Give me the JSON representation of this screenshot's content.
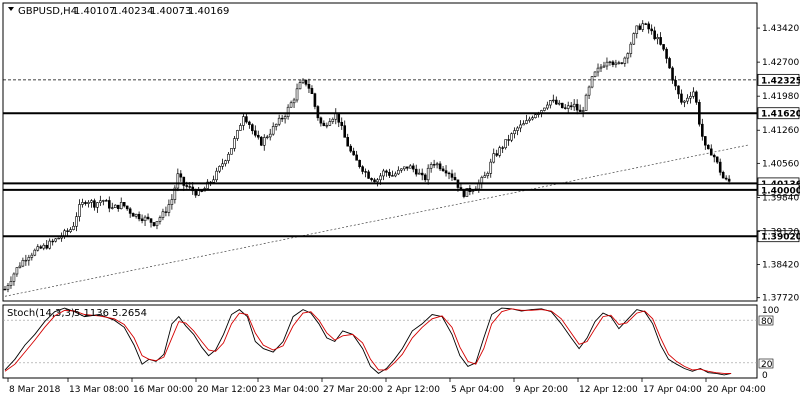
{
  "header": {
    "symbol": "GBPUSD,H4",
    "open": "1.40107",
    "high": "1.40234",
    "low": "1.40073",
    "close": "1.40169"
  },
  "stoch": {
    "label": "Stoch(14,3,3)",
    "k_value": "5.1136",
    "d_value": "5.2654",
    "level_high": "80",
    "level_low": "20",
    "tick_top": "100",
    "tick_bottom": "0",
    "k_color": "#000000",
    "d_color": "#d40000"
  },
  "chart_data": {
    "type": "candlestick",
    "price_axis_ticks": [
      "1.43420",
      "1.42700",
      "1.41980",
      "1.41260",
      "1.40560",
      "1.39840",
      "1.39120",
      "1.38420",
      "1.37720"
    ],
    "time_axis_ticks": [
      "8 Mar 2018",
      "13 Mar 08:00",
      "16 Mar 00:00",
      "20 Mar 12:00",
      "23 Mar 04:00",
      "27 Mar 20:00",
      "2 Apr 12:00",
      "5 Apr 04:00",
      "9 Apr 20:00",
      "12 Apr 12:00",
      "17 Apr 04:00",
      "20 Apr 04:00"
    ],
    "ylim": [
      1.3765,
      1.4395
    ],
    "levels": [
      {
        "price": 1.42325,
        "label": "1.42325",
        "style": "dashed"
      },
      {
        "price": 1.4162,
        "label": "1.41620",
        "style": "solid"
      },
      {
        "price": 1.40136,
        "label": "1.40136",
        "style": "solid"
      },
      {
        "price": 1.4,
        "label": "1.40000",
        "style": "solid"
      },
      {
        "price": 1.3902,
        "label": "1.39020",
        "style": "solid"
      }
    ],
    "trendline": [
      [
        0,
        1.3775
      ],
      [
        749,
        1.4095
      ]
    ],
    "close_path": [
      [
        0,
        1.379
      ],
      [
        8,
        1.382
      ],
      [
        14,
        1.384
      ],
      [
        22,
        1.386
      ],
      [
        30,
        1.387
      ],
      [
        40,
        1.388
      ],
      [
        48,
        1.389
      ],
      [
        55,
        1.39
      ],
      [
        62,
        1.391
      ],
      [
        68,
        1.392
      ],
      [
        74,
        1.396
      ],
      [
        82,
        1.398
      ],
      [
        90,
        1.397
      ],
      [
        98,
        1.398
      ],
      [
        108,
        1.396
      ],
      [
        118,
        1.397
      ],
      [
        128,
        1.395
      ],
      [
        140,
        1.394
      ],
      [
        150,
        1.393
      ],
      [
        160,
        1.395
      ],
      [
        168,
        1.398
      ],
      [
        174,
        1.403
      ],
      [
        180,
        1.401
      ],
      [
        188,
        1.4
      ],
      [
        196,
        1.399
      ],
      [
        204,
        1.401
      ],
      [
        212,
        1.403
      ],
      [
        220,
        1.406
      ],
      [
        228,
        1.409
      ],
      [
        234,
        1.412
      ],
      [
        240,
        1.416
      ],
      [
        246,
        1.414
      ],
      [
        252,
        1.411
      ],
      [
        258,
        1.41
      ],
      [
        266,
        1.412
      ],
      [
        274,
        1.414
      ],
      [
        282,
        1.416
      ],
      [
        290,
        1.419
      ],
      [
        296,
        1.422
      ],
      [
        302,
        1.423
      ],
      [
        308,
        1.421
      ],
      [
        314,
        1.416
      ],
      [
        320,
        1.413
      ],
      [
        326,
        1.415
      ],
      [
        334,
        1.416
      ],
      [
        342,
        1.411
      ],
      [
        350,
        1.407
      ],
      [
        358,
        1.405
      ],
      [
        366,
        1.403
      ],
      [
        374,
        1.402
      ],
      [
        382,
        1.404
      ],
      [
        390,
        1.403
      ],
      [
        398,
        1.404
      ],
      [
        406,
        1.405
      ],
      [
        414,
        1.404
      ],
      [
        422,
        1.402
      ],
      [
        430,
        1.406
      ],
      [
        438,
        1.405
      ],
      [
        446,
        1.404
      ],
      [
        454,
        1.402
      ],
      [
        460,
        1.399
      ],
      [
        468,
        1.4
      ],
      [
        476,
        1.401
      ],
      [
        484,
        1.403
      ],
      [
        492,
        1.407
      ],
      [
        500,
        1.409
      ],
      [
        508,
        1.411
      ],
      [
        516,
        1.413
      ],
      [
        524,
        1.414
      ],
      [
        532,
        1.416
      ],
      [
        540,
        1.417
      ],
      [
        548,
        1.419
      ],
      [
        556,
        1.418
      ],
      [
        564,
        1.417
      ],
      [
        572,
        1.418
      ],
      [
        580,
        1.416
      ],
      [
        586,
        1.42
      ],
      [
        592,
        1.424
      ],
      [
        600,
        1.426
      ],
      [
        608,
        1.428
      ],
      [
        616,
        1.426
      ],
      [
        624,
        1.428
      ],
      [
        630,
        1.431
      ],
      [
        636,
        1.434
      ],
      [
        642,
        1.435
      ],
      [
        648,
        1.434
      ],
      [
        656,
        1.432
      ],
      [
        664,
        1.429
      ],
      [
        670,
        1.425
      ],
      [
        676,
        1.421
      ],
      [
        682,
        1.418
      ],
      [
        688,
        1.42
      ],
      [
        694,
        1.421
      ],
      [
        700,
        1.413
      ],
      [
        706,
        1.408
      ],
      [
        712,
        1.408
      ],
      [
        718,
        1.405
      ],
      [
        724,
        1.402
      ],
      [
        730,
        1.4017
      ]
    ],
    "stoch_k": [
      [
        0,
        10
      ],
      [
        10,
        25
      ],
      [
        20,
        45
      ],
      [
        30,
        60
      ],
      [
        40,
        78
      ],
      [
        50,
        92
      ],
      [
        60,
        97
      ],
      [
        70,
        92
      ],
      [
        80,
        85
      ],
      [
        95,
        88
      ],
      [
        110,
        80
      ],
      [
        120,
        70
      ],
      [
        130,
        45
      ],
      [
        138,
        18
      ],
      [
        145,
        25
      ],
      [
        152,
        22
      ],
      [
        160,
        32
      ],
      [
        168,
        75
      ],
      [
        175,
        85
      ],
      [
        182,
        72
      ],
      [
        190,
        60
      ],
      [
        198,
        42
      ],
      [
        205,
        30
      ],
      [
        212,
        38
      ],
      [
        220,
        60
      ],
      [
        228,
        88
      ],
      [
        236,
        95
      ],
      [
        244,
        85
      ],
      [
        252,
        50
      ],
      [
        260,
        40
      ],
      [
        270,
        35
      ],
      [
        280,
        50
      ],
      [
        290,
        85
      ],
      [
        300,
        95
      ],
      [
        308,
        90
      ],
      [
        316,
        75
      ],
      [
        324,
        55
      ],
      [
        332,
        50
      ],
      [
        340,
        65
      ],
      [
        350,
        60
      ],
      [
        360,
        40
      ],
      [
        368,
        15
      ],
      [
        376,
        5
      ],
      [
        384,
        12
      ],
      [
        392,
        25
      ],
      [
        400,
        40
      ],
      [
        410,
        65
      ],
      [
        420,
        75
      ],
      [
        430,
        88
      ],
      [
        440,
        85
      ],
      [
        450,
        60
      ],
      [
        458,
        30
      ],
      [
        466,
        15
      ],
      [
        474,
        20
      ],
      [
        482,
        55
      ],
      [
        490,
        88
      ],
      [
        500,
        97
      ],
      [
        510,
        96
      ],
      [
        520,
        93
      ],
      [
        530,
        95
      ],
      [
        540,
        96
      ],
      [
        550,
        92
      ],
      [
        560,
        75
      ],
      [
        570,
        55
      ],
      [
        578,
        40
      ],
      [
        586,
        55
      ],
      [
        594,
        78
      ],
      [
        602,
        90
      ],
      [
        610,
        85
      ],
      [
        618,
        68
      ],
      [
        626,
        80
      ],
      [
        636,
        95
      ],
      [
        644,
        92
      ],
      [
        652,
        75
      ],
      [
        660,
        45
      ],
      [
        668,
        25
      ],
      [
        676,
        18
      ],
      [
        684,
        12
      ],
      [
        692,
        8
      ],
      [
        700,
        12
      ],
      [
        708,
        6
      ],
      [
        716,
        5
      ],
      [
        724,
        3
      ],
      [
        731,
        5
      ]
    ],
    "stoch_d": [
      [
        0,
        8
      ],
      [
        10,
        18
      ],
      [
        20,
        35
      ],
      [
        30,
        52
      ],
      [
        40,
        70
      ],
      [
        50,
        86
      ],
      [
        60,
        94
      ],
      [
        70,
        93
      ],
      [
        80,
        88
      ],
      [
        95,
        86
      ],
      [
        110,
        82
      ],
      [
        120,
        74
      ],
      [
        130,
        55
      ],
      [
        138,
        30
      ],
      [
        145,
        25
      ],
      [
        152,
        23
      ],
      [
        160,
        28
      ],
      [
        168,
        55
      ],
      [
        175,
        78
      ],
      [
        182,
        76
      ],
      [
        190,
        65
      ],
      [
        198,
        50
      ],
      [
        205,
        38
      ],
      [
        212,
        36
      ],
      [
        220,
        48
      ],
      [
        228,
        75
      ],
      [
        236,
        90
      ],
      [
        244,
        88
      ],
      [
        252,
        62
      ],
      [
        260,
        45
      ],
      [
        270,
        38
      ],
      [
        280,
        44
      ],
      [
        290,
        72
      ],
      [
        300,
        90
      ],
      [
        308,
        92
      ],
      [
        316,
        80
      ],
      [
        324,
        62
      ],
      [
        332,
        52
      ],
      [
        340,
        58
      ],
      [
        350,
        60
      ],
      [
        360,
        48
      ],
      [
        368,
        25
      ],
      [
        376,
        10
      ],
      [
        384,
        10
      ],
      [
        392,
        20
      ],
      [
        400,
        32
      ],
      [
        410,
        55
      ],
      [
        420,
        70
      ],
      [
        430,
        82
      ],
      [
        440,
        86
      ],
      [
        450,
        70
      ],
      [
        458,
        42
      ],
      [
        466,
        22
      ],
      [
        474,
        18
      ],
      [
        482,
        40
      ],
      [
        490,
        75
      ],
      [
        500,
        92
      ],
      [
        510,
        96
      ],
      [
        520,
        94
      ],
      [
        530,
        94
      ],
      [
        540,
        95
      ],
      [
        550,
        93
      ],
      [
        560,
        82
      ],
      [
        570,
        62
      ],
      [
        578,
        46
      ],
      [
        586,
        50
      ],
      [
        594,
        68
      ],
      [
        602,
        85
      ],
      [
        610,
        87
      ],
      [
        618,
        74
      ],
      [
        626,
        76
      ],
      [
        636,
        90
      ],
      [
        644,
        93
      ],
      [
        652,
        82
      ],
      [
        660,
        55
      ],
      [
        668,
        32
      ],
      [
        676,
        22
      ],
      [
        684,
        15
      ],
      [
        692,
        10
      ],
      [
        700,
        11
      ],
      [
        708,
        8
      ],
      [
        716,
        6
      ],
      [
        724,
        5
      ],
      [
        731,
        5
      ]
    ]
  }
}
